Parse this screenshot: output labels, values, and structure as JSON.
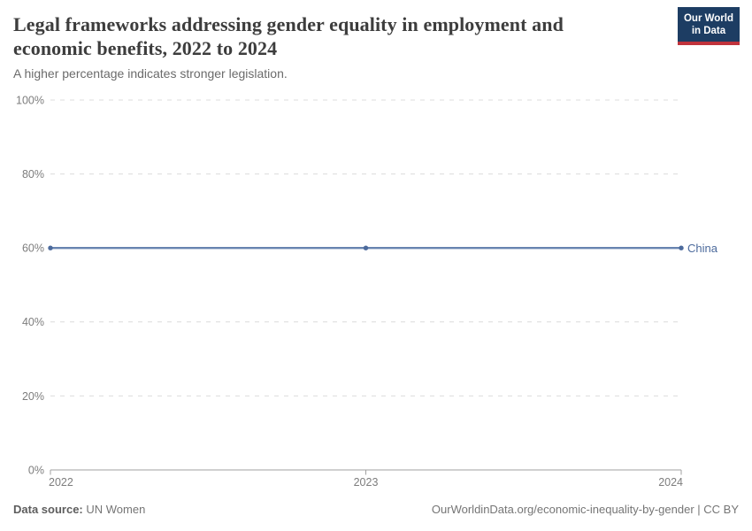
{
  "header": {
    "title_lines": {
      "0": "Legal frameworks addressing gender equality in employment and",
      "1": "economic benefits, 2022 to 2024"
    },
    "subtitle": "A higher percentage indicates stronger legislation.",
    "logo": {
      "line1": "Our World",
      "line2": "in Data",
      "bg_color": "#1d3d63",
      "accent_color": "#c0333c"
    }
  },
  "chart_data": {
    "type": "line",
    "title": "Legal frameworks addressing gender equality in employment and economic benefits, 2022 to 2024",
    "subtitle": "A higher percentage indicates stronger legislation.",
    "x": [
      2022,
      2023,
      2024
    ],
    "xticks": [
      2022,
      2023,
      2024
    ],
    "xtick_labels": [
      "2022",
      "2023",
      "2024"
    ],
    "ylim": [
      0,
      100
    ],
    "yticks": [
      0,
      20,
      40,
      60,
      80,
      100
    ],
    "ytick_labels": [
      "0%",
      "20%",
      "40%",
      "60%",
      "80%",
      "100%"
    ],
    "grid": "horizontal-dashed",
    "legend": "end-of-line-label",
    "series": [
      {
        "name": "China",
        "values": [
          60,
          60,
          60
        ],
        "color": "#4c6a9c",
        "line_color": "#6884b0"
      }
    ],
    "xlabel": "",
    "ylabel": "",
    "colors": {
      "gridline": "#dcdcdc",
      "axis": "#a1a1a1",
      "tick_text": "#7d7d7d"
    }
  },
  "footer": {
    "data_source_label": "Data source:",
    "data_source_value": " UN Women",
    "attribution": "OurWorldinData.org/economic-inequality-by-gender | CC BY"
  }
}
